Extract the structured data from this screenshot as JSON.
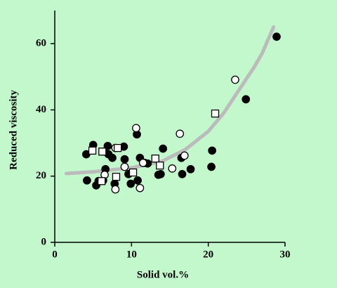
{
  "chart_data": {
    "type": "scatter",
    "xlabel": "Solid vol.%",
    "ylabel": "Reduced viscosity",
    "xlim": [
      0,
      30
    ],
    "ylim": [
      0,
      70
    ],
    "xticks": [
      0,
      10,
      20,
      30
    ],
    "yticks": [
      0,
      20,
      40,
      60
    ],
    "series": [
      {
        "marker": "circle",
        "color": "#000000",
        "fill": "#000000",
        "x": [
          4.1,
          5.0,
          4.2,
          5.4,
          5.7,
          6.3,
          6.6,
          6.9,
          7.0,
          7.5,
          6.4,
          7.8,
          9.0,
          9.1,
          9.6,
          9.9,
          10.7,
          10.8,
          11.1,
          11.7,
          12.1,
          13.5,
          13.8,
          14.1,
          16.5,
          16.6,
          17.7,
          20.4,
          20.5,
          24.9,
          28.9
        ],
        "values": [
          26.6,
          29.4,
          18.7,
          17.2,
          18.5,
          18.7,
          22.1,
          29.1,
          26.6,
          25.5,
          27.4,
          17.7,
          28.9,
          25.1,
          20.6,
          17.7,
          32.6,
          18.7,
          25.5,
          24.0,
          23.8,
          20.4,
          20.6,
          28.3,
          25.5,
          20.6,
          22.1,
          22.8,
          27.7,
          43.2,
          62.1
        ]
      },
      {
        "marker": "circle",
        "color": "#000000",
        "fill": "#ffffff",
        "x": [
          6.5,
          7.9,
          7.9,
          9.1,
          10.6,
          11.1,
          11.5,
          15.3,
          16.3,
          16.9,
          23.5
        ],
        "values": [
          20.4,
          28.5,
          16.0,
          22.8,
          34.5,
          16.4,
          24.0,
          22.3,
          32.8,
          26.2,
          49.1
        ]
      },
      {
        "marker": "square",
        "color": "#000000",
        "fill": "#ffffff",
        "x": [
          4.9,
          6.2,
          6.1,
          8.2,
          8.0,
          10.2,
          13.1,
          13.7,
          20.9
        ],
        "values": [
          27.7,
          27.4,
          18.5,
          28.5,
          19.8,
          21.1,
          25.3,
          23.2,
          38.9
        ]
      }
    ],
    "curve": {
      "color": "#bbbbbb",
      "x": [
        1.5,
        5,
        10,
        14,
        17,
        20,
        22,
        24,
        26,
        27,
        28.5
      ],
      "values": [
        20.8,
        21.3,
        22.5,
        24.5,
        28,
        33.5,
        39,
        46,
        53,
        57,
        65
      ]
    }
  }
}
